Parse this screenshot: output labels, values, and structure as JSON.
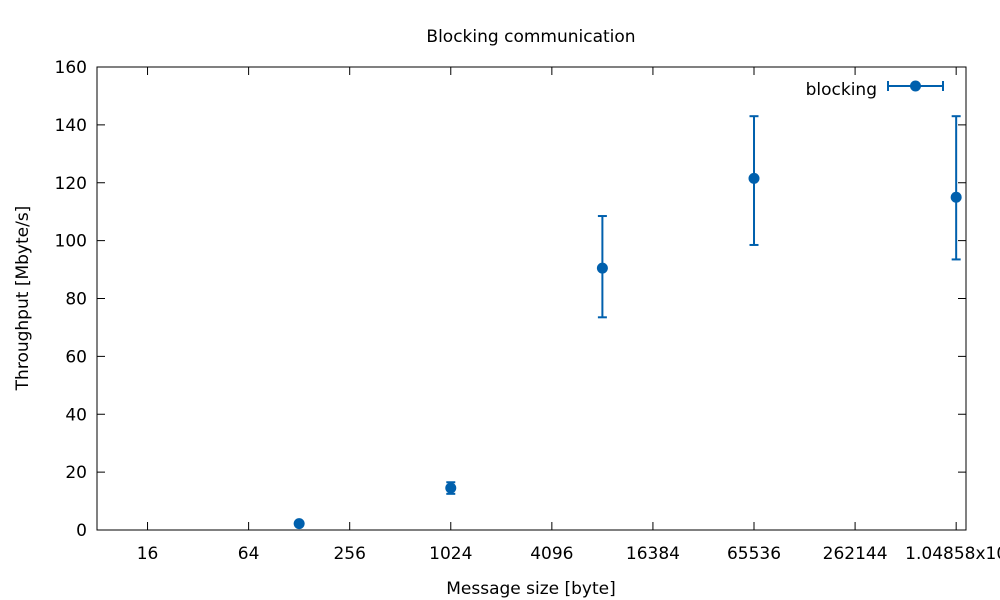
{
  "chart_data": {
    "type": "scatter",
    "title": "Blocking communication",
    "xlabel": "Message size [byte]",
    "ylabel": "Throughput [Mbyte/s]",
    "x_scale": "log2",
    "xlim": [
      8,
      1200000
    ],
    "ylim": [
      0,
      160
    ],
    "x_ticks": [
      {
        "value": 16,
        "label": "16"
      },
      {
        "value": 64,
        "label": "64"
      },
      {
        "value": 256,
        "label": "256"
      },
      {
        "value": 1024,
        "label": "1024"
      },
      {
        "value": 4096,
        "label": "4096"
      },
      {
        "value": 16384,
        "label": "16384"
      },
      {
        "value": 65536,
        "label": "65536"
      },
      {
        "value": 262144,
        "label": "262144"
      },
      {
        "value": 1048576,
        "label": "1.04858x10"
      }
    ],
    "y_ticks": [
      {
        "value": 0,
        "label": "0"
      },
      {
        "value": 20,
        "label": "20"
      },
      {
        "value": 40,
        "label": "40"
      },
      {
        "value": 60,
        "label": "60"
      },
      {
        "value": 80,
        "label": "80"
      },
      {
        "value": 100,
        "label": "100"
      },
      {
        "value": 120,
        "label": "120"
      },
      {
        "value": 140,
        "label": "140"
      },
      {
        "value": 160,
        "label": "160"
      }
    ],
    "grid": false,
    "legend": "top-right",
    "series": [
      {
        "name": "blocking",
        "color": "#0060ad",
        "points": [
          {
            "x": 128,
            "y": 2.2,
            "ylow": 2.0,
            "yhigh": 2.4
          },
          {
            "x": 1024,
            "y": 14.5,
            "ylow": 12.5,
            "yhigh": 16.5
          },
          {
            "x": 8192,
            "y": 90.5,
            "ylow": 73.5,
            "yhigh": 108.5
          },
          {
            "x": 65536,
            "y": 121.5,
            "ylow": 98.5,
            "yhigh": 143
          },
          {
            "x": 1048576,
            "y": 115,
            "ylow": 93.5,
            "yhigh": 143
          }
        ]
      }
    ]
  }
}
